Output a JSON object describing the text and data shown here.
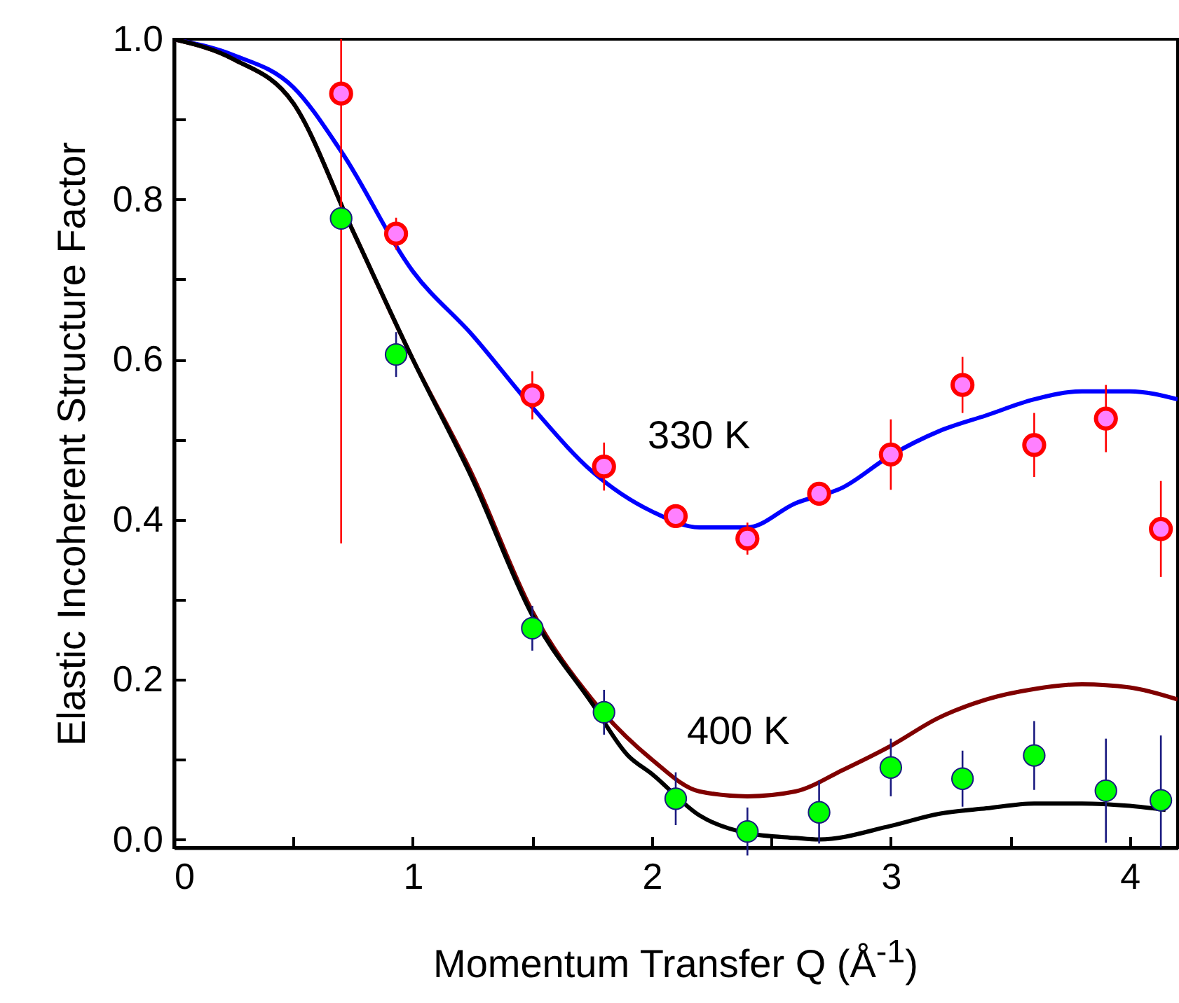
{
  "chart_data": {
    "type": "line",
    "xlabel": "Momentum Transfer Q (Å$^{-1}$)",
    "ylabel": "Elastic Incoherent Structure Factor",
    "xlim": [
      0,
      4.2
    ],
    "ylim": [
      -0.01,
      1.0
    ],
    "xticks": [
      0,
      {
        "value": 0.5,
        "label": null
      },
      1,
      {
        "value": 1.5,
        "label": null
      },
      2,
      {
        "value": 2.5,
        "label": null
      },
      3,
      {
        "value": 3.5,
        "label": null
      },
      4
    ],
    "yticks": [
      {
        "value": 0,
        "label": "0.0"
      },
      {
        "value": 0.1,
        "label": null
      },
      {
        "value": 0.2,
        "label": "0.2"
      },
      {
        "value": 0.3,
        "label": null
      },
      {
        "value": 0.4,
        "label": "0.4"
      },
      {
        "value": 0.5,
        "label": null
      },
      {
        "value": 0.6,
        "label": "0.6"
      },
      {
        "value": 0.7,
        "label": null
      },
      {
        "value": 0.8,
        "label": "0.8"
      },
      {
        "value": 0.9,
        "label": null
      },
      {
        "value": 1.0,
        "label": "1.0"
      }
    ],
    "grid": false,
    "series": [
      {
        "color": "#0000ff",
        "marker": "none",
        "x": [
          0,
          0.25,
          0.5,
          0.7,
          1.0,
          1.25,
          1.5,
          1.75,
          2.0,
          2.2,
          2.4,
          2.6,
          2.8,
          3.0,
          3.2,
          3.4,
          3.6,
          3.8,
          4.0,
          4.2
        ],
        "values": [
          1.0,
          0.98,
          0.94,
          0.86,
          0.71,
          0.63,
          0.54,
          0.46,
          0.41,
          0.39,
          0.39,
          0.42,
          0.44,
          0.48,
          0.51,
          0.53,
          0.55,
          0.56,
          0.56,
          0.55
        ]
      },
      {
        "color": "#800000",
        "marker": "none",
        "x": [
          0,
          0.25,
          0.5,
          0.75,
          1.0,
          1.25,
          1.5,
          1.75,
          2.0,
          2.2,
          2.4,
          2.6,
          2.8,
          3.0,
          3.2,
          3.4,
          3.6,
          3.8,
          4.0,
          4.2
        ],
        "values": [
          1.0,
          0.975,
          0.92,
          0.76,
          0.6,
          0.455,
          0.285,
          0.175,
          0.1,
          0.06,
          0.054,
          0.06,
          0.087,
          0.117,
          0.152,
          0.175,
          0.188,
          0.194,
          0.19,
          0.175
        ]
      },
      {
        "color": "#000000",
        "marker": "none",
        "x": [
          0,
          0.25,
          0.5,
          0.75,
          1.0,
          1.25,
          1.5,
          1.75,
          1.9,
          2.0,
          2.2,
          2.4,
          2.6,
          2.7,
          3.0,
          3.2,
          3.4,
          3.6,
          3.8,
          4.0,
          4.15
        ],
        "values": [
          1.0,
          0.975,
          0.92,
          0.76,
          0.6,
          0.45,
          0.28,
          0.17,
          0.105,
          0.082,
          0.03,
          0.008,
          0.002,
          0.0,
          0.017,
          0.032,
          0.039,
          0.045,
          0.045,
          0.042,
          0.037
        ]
      },
      {
        "type": "scatter",
        "color": "#ff0000",
        "marker": "circle",
        "x": [
          0.7,
          0.93,
          1.5,
          1.8,
          2.1,
          2.4,
          2.7,
          3.0,
          3.3,
          3.6,
          3.9,
          4.13
        ],
        "values": [
          0.932,
          0.757,
          0.555,
          0.466,
          0.404,
          0.376,
          0.432,
          0.481,
          0.568,
          0.493,
          0.526,
          0.388
        ],
        "errors": [
          [
            0.37,
            1.0
          ],
          0.02,
          0.03,
          0.03,
          0.01,
          0.02,
          0.01,
          0.044,
          0.035,
          0.04,
          0.042,
          0.06
        ]
      },
      {
        "type": "scatter",
        "color": "#00ff00",
        "marker": "circle",
        "x": [
          0.7,
          0.93,
          1.5,
          1.8,
          2.1,
          2.4,
          2.7,
          3.0,
          3.3,
          3.6,
          3.9,
          4.13
        ],
        "values": [
          0.776,
          0.606,
          0.264,
          0.159,
          0.051,
          0.01,
          0.034,
          0.09,
          0.076,
          0.105,
          0.061,
          0.049
        ],
        "errors": [
          null,
          0.028,
          0.028,
          0.028,
          0.033,
          0.03,
          0.039,
          0.036,
          0.035,
          0.043,
          0.065,
          [
            -0.01,
            0.13
          ]
        ]
      }
    ],
    "annotations": [
      "330 K",
      "400 K"
    ]
  }
}
